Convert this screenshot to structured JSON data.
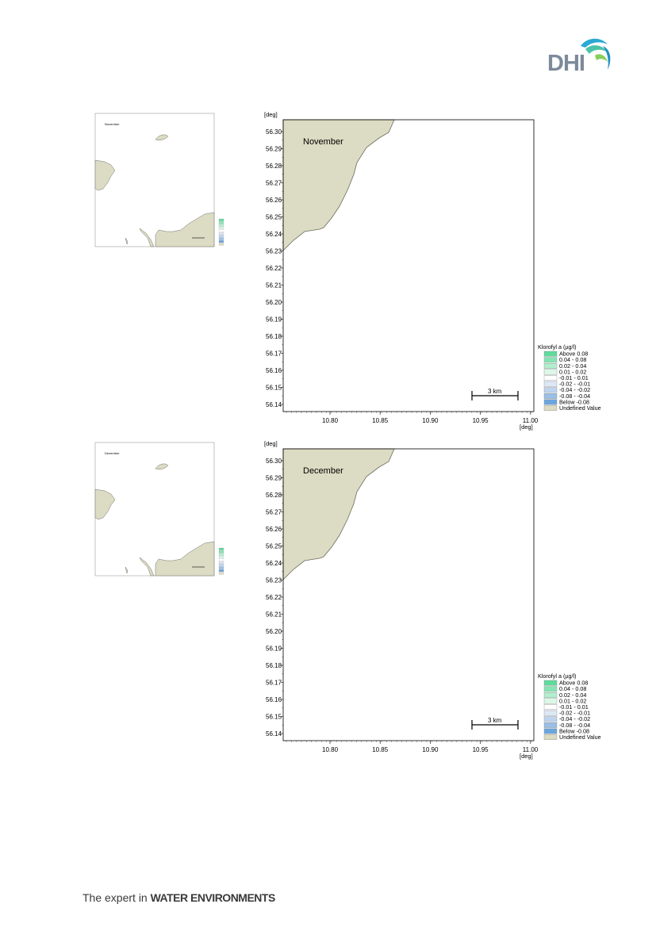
{
  "logo": {
    "text": "DHI"
  },
  "footer": {
    "prefix": "The expert in ",
    "emphasis": "WATER ENVIRONMENTS"
  },
  "colors": {
    "land": "#dcdbc3",
    "land_stroke": "#6b6b5a",
    "frame": "#000000"
  },
  "legend": {
    "title": "Klorofyl a (µg/l)",
    "items": [
      {
        "label": "Above  0.08",
        "color": "#5fdb9c"
      },
      {
        "label": " 0.04 -  0.08",
        "color": "#86e4b4"
      },
      {
        "label": " 0.02 -  0.04",
        "color": "#b2efcf"
      },
      {
        "label": " 0.01 -  0.02",
        "color": "#dcf7e8"
      },
      {
        "label": "-0.01 -  0.01",
        "color": "#ffffff"
      },
      {
        "label": "-0.02 - -0.01",
        "color": "#dde8f6"
      },
      {
        "label": "-0.04 - -0.02",
        "color": "#bed4ee"
      },
      {
        "label": "-0.08 - -0.04",
        "color": "#9abfe7"
      },
      {
        "label": "Below  -0.08",
        "color": "#6aa5de"
      },
      {
        "label": "Undefined Value",
        "color": "#dcdbc3"
      }
    ]
  },
  "maps": [
    {
      "month": "November",
      "thumb_month": "November",
      "y_unit": "[deg]",
      "x_unit": "[deg]",
      "y_ticks": [
        "56.30",
        "56.29",
        "56.28",
        "56.27",
        "56.26",
        "56.25",
        "56.24",
        "56.23",
        "56.22",
        "56.21",
        "56.20",
        "56.19",
        "56.18",
        "56.17",
        "56.16",
        "56.15",
        "56.14"
      ],
      "x_ticks": [
        "10.80",
        "10.85",
        "10.90",
        "10.95",
        "11.00"
      ],
      "scale_bar": "3 km"
    },
    {
      "month": "December",
      "thumb_month": "December",
      "y_unit": "[deg]",
      "x_unit": "[deg]",
      "y_ticks": [
        "56.30",
        "56.29",
        "56.28",
        "56.27",
        "56.26",
        "56.25",
        "56.24",
        "56.23",
        "56.22",
        "56.21",
        "56.20",
        "56.19",
        "56.18",
        "56.17",
        "56.16",
        "56.15",
        "56.14"
      ],
      "x_ticks": [
        "10.80",
        "10.85",
        "10.90",
        "10.95",
        "11.00"
      ],
      "scale_bar": "3 km"
    }
  ]
}
